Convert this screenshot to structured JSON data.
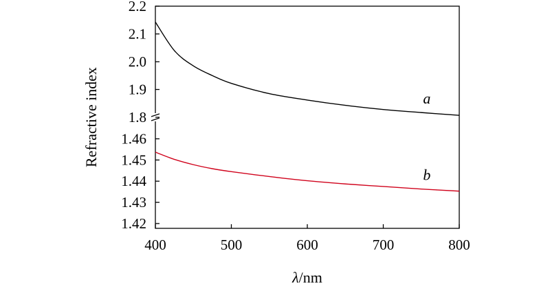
{
  "chart_data": {
    "type": "line",
    "title": "",
    "xlabel_symbol": "λ",
    "xlabel_unit": "/nm",
    "ylabel": "Refractive index",
    "xlim": [
      400,
      800
    ],
    "x_ticks": [
      {
        "value": 400,
        "label": "400"
      },
      {
        "value": 500,
        "label": "500"
      },
      {
        "value": 600,
        "label": "600"
      },
      {
        "value": 700,
        "label": "700"
      },
      {
        "value": 800,
        "label": "800"
      }
    ],
    "y_axis_broken": true,
    "upper_ylim": [
      1.8,
      2.2
    ],
    "lower_ylim": [
      1.42,
      1.465
    ],
    "y_ticks_upper": [
      {
        "value": 1.8,
        "label": "1.8"
      },
      {
        "value": 1.9,
        "label": "1.9"
      },
      {
        "value": 2.0,
        "label": "2.0"
      },
      {
        "value": 2.1,
        "label": "2.1"
      },
      {
        "value": 2.2,
        "label": "2.2"
      }
    ],
    "y_ticks_lower": [
      {
        "value": 1.42,
        "label": "1.42"
      },
      {
        "value": 1.43,
        "label": "1.43"
      },
      {
        "value": 1.44,
        "label": "1.44"
      },
      {
        "value": 1.45,
        "label": "1.45"
      },
      {
        "value": 1.46,
        "label": "1.46"
      }
    ],
    "series": [
      {
        "label": "a",
        "segment": "upper",
        "color": "#000000",
        "x": [
          400,
          425,
          450,
          475,
          500,
          550,
          600,
          650,
          700,
          750,
          800
        ],
        "y": [
          2.143,
          2.04,
          1.985,
          1.95,
          1.922,
          1.885,
          1.862,
          1.843,
          1.828,
          1.817,
          1.807
        ]
      },
      {
        "label": "b",
        "segment": "lower",
        "color": "#d0021b",
        "x": [
          400,
          425,
          450,
          475,
          500,
          550,
          600,
          650,
          700,
          750,
          800
        ],
        "y": [
          1.4537,
          1.4503,
          1.4478,
          1.4459,
          1.4445,
          1.4422,
          1.4402,
          1.4387,
          1.4375,
          1.4363,
          1.4353
        ]
      }
    ],
    "grid": false,
    "legend": "none"
  }
}
